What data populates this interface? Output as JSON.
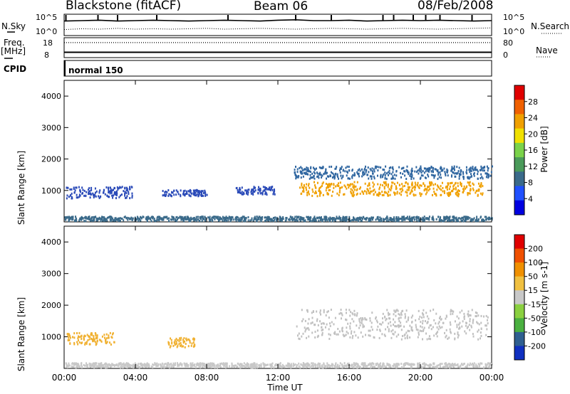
{
  "header": {
    "station": "Blackstone (fitACF)",
    "beam": "Beam 06",
    "date": "08/Feb/2008"
  },
  "chart_data": [
    {
      "type": "line",
      "name_label": "N.Sky",
      "right_label": "N.Search",
      "y_ticks_left": [
        "10^5",
        "10^0"
      ],
      "y_ticks_right": [
        "10^5",
        "10^0"
      ],
      "x": [
        0,
        1,
        2,
        3,
        4,
        5,
        6,
        7,
        8,
        9,
        10,
        11,
        12,
        13,
        14,
        15,
        16,
        17,
        18,
        19,
        20,
        21,
        22,
        23,
        24
      ],
      "series": [
        {
          "values": [
            3.4,
            3.5,
            3.6,
            3.4,
            3.5,
            3.6,
            3.5,
            3.4,
            3.5,
            3.6,
            3.5,
            3.4,
            3.6,
            3.7,
            3.5,
            3.5,
            3.6,
            3.4,
            3.5,
            3.6,
            3.5,
            3.6,
            3.5,
            3.4,
            3.5
          ],
          "style": "solid"
        },
        {
          "values": [
            1.4,
            1.6,
            1.5,
            1.7,
            1.5,
            1.6,
            1.5,
            1.6,
            1.7,
            1.5,
            1.6,
            1.7,
            1.6,
            1.5,
            1.6,
            1.7,
            1.6,
            1.5,
            1.6,
            1.7,
            1.6,
            1.5,
            1.6,
            1.7,
            1.8
          ],
          "style": "dotted"
        }
      ],
      "spikes_hours": [
        0.1,
        1.9,
        3.0,
        5.2,
        9.2,
        13.0,
        15.0,
        17.9,
        18.5,
        19.6,
        20.3,
        21.1,
        22.9
      ]
    },
    {
      "type": "line",
      "name_label": "Freq.",
      "unit_label": "[MHz]",
      "right_label": "Nave",
      "y_ticks_left": [
        "18",
        "8"
      ],
      "y_ticks_right": [
        "80",
        "0"
      ],
      "ylim": [
        8,
        18
      ],
      "x": [
        0,
        24
      ],
      "series": [
        {
          "values": [
            10.4,
            10.4
          ],
          "style": "solid"
        },
        {
          "values": [
            16.3,
            16.3
          ],
          "style": "dotted"
        }
      ]
    },
    {
      "type": "heatmap",
      "ylabel": "Slant Range [km]",
      "ylim": [
        0,
        4500
      ],
      "y_ticks": [
        "1000",
        "2000",
        "3000",
        "4000"
      ],
      "colorbar_label": "Power [dB]",
      "colorbar_ticks": [
        "28",
        "24",
        "20",
        "16",
        "12",
        "8",
        "4"
      ],
      "colorbar_colors": [
        "#0000e0",
        "#2050ff",
        "#3a6a8a",
        "#4a9a5a",
        "#7ad24a",
        "#f0e000",
        "#f0a000",
        "#f06000",
        "#e00000"
      ],
      "scatter_bands": [
        {
          "x": [
            0.1,
            3.8
          ],
          "y": [
            780,
            1150
          ],
          "color": "#2a4ab8"
        },
        {
          "x": [
            5.5,
            8.0
          ],
          "y": [
            850,
            1050
          ],
          "color": "#2a4ab8"
        },
        {
          "x": [
            9.6,
            11.8
          ],
          "y": [
            900,
            1150
          ],
          "color": "#2a4ab8"
        },
        {
          "x": [
            12.9,
            24.0
          ],
          "y": [
            1400,
            1800
          ],
          "color": "#2f66a0"
        },
        {
          "x": [
            13.2,
            23.5
          ],
          "y": [
            850,
            1300
          ],
          "color": "#f0a000"
        },
        {
          "x": [
            0.0,
            24.0
          ],
          "y": [
            60,
            200
          ],
          "color": "#3a6a8a"
        }
      ]
    },
    {
      "type": "heatmap",
      "ylabel": "Slant Range [km]",
      "ylim": [
        0,
        4500
      ],
      "y_ticks": [
        "1000",
        "2000",
        "3000",
        "4000"
      ],
      "colorbar_label": "Velocity [m s-1]",
      "colorbar_ticks": [
        "200",
        "100",
        "50",
        "15",
        "-15",
        "-50",
        "-100",
        "-200"
      ],
      "colorbar_colors": [
        "#1030c0",
        "#2f5f90",
        "#4ab040",
        "#8ad040",
        "#c8c8c8",
        "#f0c040",
        "#f09000",
        "#f05000",
        "#e00000"
      ],
      "scatter_bands": [
        {
          "x": [
            0.1,
            2.8
          ],
          "y": [
            780,
            1150
          ],
          "color": "#f0b030"
        },
        {
          "x": [
            5.8,
            7.3
          ],
          "y": [
            700,
            1000
          ],
          "color": "#f0b030"
        },
        {
          "x": [
            13.0,
            23.8
          ],
          "y": [
            950,
            1900
          ],
          "color": "#c0c0c0"
        },
        {
          "x": [
            0.0,
            24.0
          ],
          "y": [
            60,
            200
          ],
          "color": "#c8c8c8"
        }
      ]
    }
  ],
  "x_axis": {
    "label": "Time UT",
    "ticks": [
      "00:00",
      "04:00",
      "08:00",
      "12:00",
      "16:00",
      "20:00",
      "00:00"
    ]
  },
  "cpid": {
    "label": "CPID",
    "mode": "normal 150"
  }
}
